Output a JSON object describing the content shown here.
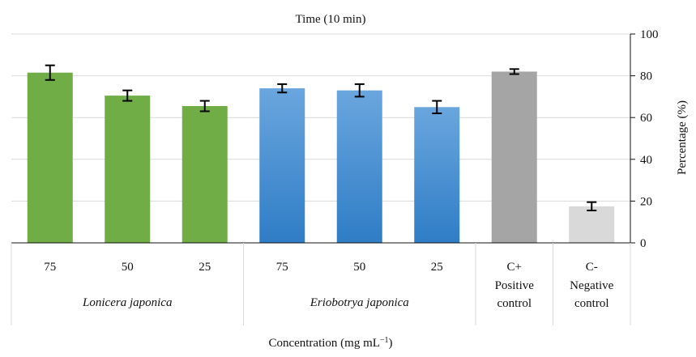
{
  "chart_data": {
    "type": "bar",
    "title": "Time (10 min)",
    "xlabel": "Concentration (mg mL",
    "xlabel_superscript": "−1",
    "xlabel_suffix": ")",
    "ylabel": "Percentage (%)",
    "ylim": [
      0,
      100
    ],
    "yticks": [
      "0",
      "20",
      "40",
      "60",
      "80",
      "100"
    ],
    "y_axis_side": "right",
    "grid": true,
    "categories": [
      {
        "label": "75",
        "group": "Lonicera japonica",
        "value": 81.5,
        "error": 3.5,
        "color": "#70ad47"
      },
      {
        "label": "50",
        "group": "Lonicera japonica",
        "value": 70.5,
        "error": 2.5,
        "color": "#70ad47"
      },
      {
        "label": "25",
        "group": "Lonicera japonica",
        "value": 65.5,
        "error": 2.5,
        "color": "#70ad47"
      },
      {
        "label": "75",
        "group": "Eriobotrya japonica",
        "value": 74.0,
        "error": 2.0,
        "color": "#4a8fd0"
      },
      {
        "label": "50",
        "group": "Eriobotrya japonica",
        "value": 73.0,
        "error": 3.0,
        "color": "#4a8fd0"
      },
      {
        "label": "25",
        "group": "Eriobotrya japonica",
        "value": 65.0,
        "error": 3.0,
        "color": "#4a8fd0"
      },
      {
        "label": "C+",
        "group": "Positive control",
        "value": 82.0,
        "error": 1.2,
        "color": "#a5a5a5"
      },
      {
        "label": "C-",
        "group": "Negative control",
        "value": 17.5,
        "error": 2.0,
        "color": "#d9d9d9"
      }
    ],
    "groups": [
      {
        "name": "Lonicera japonica",
        "italic": true,
        "span": 3
      },
      {
        "name": "Eriobotrya japonica",
        "italic": true,
        "span": 3
      },
      {
        "name": "Positive control",
        "italic": false,
        "span": 1
      },
      {
        "name": "Negative control",
        "italic": false,
        "span": 1
      }
    ]
  }
}
